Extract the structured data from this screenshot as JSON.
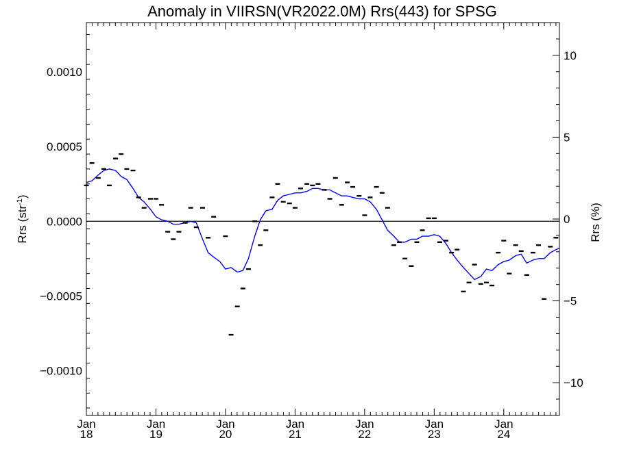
{
  "chart_data": {
    "type": "scatter",
    "title": "Anomaly in VIIRSN(VR2022.0M) Rrs(443) for SPSG",
    "ylabel": "Rrs (str",
    "ylabel_sup": "-1",
    "ylabel_close": ")",
    "y2label": "Rrs (%)",
    "xlim": [
      2018.0,
      2024.8
    ],
    "ylim": [
      -0.0013,
      0.00133
    ],
    "y2lim": [
      -12,
      12
    ],
    "x_ticks": [
      {
        "x": 2018.0,
        "month": "Jan",
        "year": "18"
      },
      {
        "x": 2019.0,
        "month": "Jan",
        "year": "19"
      },
      {
        "x": 2020.0,
        "month": "Jan",
        "year": "20"
      },
      {
        "x": 2021.0,
        "month": "Jan",
        "year": "21"
      },
      {
        "x": 2022.0,
        "month": "Jan",
        "year": "22"
      },
      {
        "x": 2023.0,
        "month": "Jan",
        "year": "23"
      },
      {
        "x": 2024.0,
        "month": "Jan",
        "year": "24"
      }
    ],
    "y_ticks": [
      {
        "value": 0.001,
        "label": "0.0010"
      },
      {
        "value": 0.0005,
        "label": "0.0005"
      },
      {
        "value": 0.0,
        "label": "0.0000"
      },
      {
        "value": -0.0005,
        "label": "−0.0005"
      },
      {
        "value": -0.001,
        "label": "−0.0010"
      }
    ],
    "y2_ticks": [
      {
        "value": 10,
        "label": "10"
      },
      {
        "value": 5,
        "label": "5"
      },
      {
        "value": 0,
        "label": "0"
      },
      {
        "value": -5,
        "label": "−5"
      },
      {
        "value": -10,
        "label": "−10"
      }
    ],
    "zero_line": true,
    "colors": {
      "points": "#000000",
      "smoothed": "#0000ff",
      "zero_line": "#000000"
    },
    "series": [
      {
        "kind": "points",
        "x": [
          2018.0,
          2018.08,
          2018.17,
          2018.25,
          2018.33,
          2018.42,
          2018.5,
          2018.58,
          2018.67,
          2018.75,
          2018.83,
          2018.92,
          2019.0,
          2019.08,
          2019.17,
          2019.25,
          2019.33,
          2019.42,
          2019.5,
          2019.58,
          2019.67,
          2019.75,
          2019.83,
          2019.92,
          2020.0,
          2020.08,
          2020.17,
          2020.25,
          2020.33,
          2020.42,
          2020.5,
          2020.58,
          2020.67,
          2020.75,
          2020.83,
          2020.92,
          2021.0,
          2021.08,
          2021.17,
          2021.25,
          2021.33,
          2021.42,
          2021.5,
          2021.58,
          2021.67,
          2021.75,
          2021.83,
          2021.92,
          2022.0,
          2022.08,
          2022.17,
          2022.25,
          2022.33,
          2022.42,
          2022.5,
          2022.58,
          2022.67,
          2022.75,
          2022.83,
          2022.92,
          2023.0,
          2023.08,
          2023.17,
          2023.25,
          2023.33,
          2023.42,
          2023.5,
          2023.58,
          2023.67,
          2023.75,
          2023.83,
          2023.92,
          2024.0,
          2024.08,
          2024.17,
          2024.25,
          2024.33,
          2024.42,
          2024.5,
          2024.58,
          2024.67,
          2024.75
        ],
        "y": [
          0.00024,
          0.00039,
          0.00029,
          0.00035,
          0.00024,
          0.00042,
          0.00045,
          0.00035,
          0.00034,
          0.00016,
          9e-05,
          0.00015,
          0.00015,
          0.00011,
          -7e-05,
          -0.00012,
          -7e-05,
          -1e-05,
          9e-05,
          -4e-05,
          9e-05,
          -0.00011,
          3e-05,
          null,
          -0.0001,
          -0.00076,
          -0.00057,
          -0.00045,
          -0.00032,
          0.0,
          -0.00016,
          -6e-05,
          0.00016,
          0.00025,
          0.00013,
          0.00012,
          9e-05,
          0.00022,
          0.00025,
          0.00024,
          0.00025,
          0.00021,
          0.00015,
          0.00029,
          0.00011,
          0.00026,
          0.00023,
          0.00017,
          4e-05,
          0.00016,
          0.00023,
          0.00019,
          9e-05,
          -0.00016,
          -0.00014,
          -0.00025,
          -0.0003,
          -0.00014,
          -6e-05,
          2e-05,
          2e-05,
          -0.00014,
          -0.00013,
          -0.00021,
          -0.00019,
          -0.00047,
          -0.00041,
          -0.00029,
          -0.00042,
          -0.00041,
          -0.00043,
          -0.00021,
          -0.00013,
          -0.00035,
          -0.00016,
          -0.0002,
          -0.00036,
          -0.00021,
          -0.00016,
          -0.00052,
          -0.00017,
          -0.00011
        ]
      },
      {
        "kind": "smoothed",
        "x": [
          2018.0,
          2018.08,
          2018.17,
          2018.25,
          2018.33,
          2018.42,
          2018.5,
          2018.58,
          2018.67,
          2018.75,
          2018.83,
          2018.92,
          2019.0,
          2019.08,
          2019.17,
          2019.25,
          2019.33,
          2019.42,
          2019.5,
          2019.58,
          2019.67,
          2019.75,
          2019.83,
          2019.92,
          2020.0,
          2020.08,
          2020.17,
          2020.25,
          2020.33,
          2020.42,
          2020.5,
          2020.58,
          2020.67,
          2020.75,
          2020.83,
          2020.92,
          2021.0,
          2021.08,
          2021.17,
          2021.25,
          2021.33,
          2021.42,
          2021.5,
          2021.58,
          2021.67,
          2021.75,
          2021.83,
          2021.92,
          2022.0,
          2022.08,
          2022.17,
          2022.25,
          2022.33,
          2022.42,
          2022.5,
          2022.58,
          2022.67,
          2022.75,
          2022.83,
          2022.92,
          2023.0,
          2023.08,
          2023.17,
          2023.25,
          2023.33,
          2023.42,
          2023.5,
          2023.58,
          2023.67,
          2023.75,
          2023.83,
          2023.92,
          2024.0,
          2024.08,
          2024.17,
          2024.25,
          2024.33,
          2024.42,
          2024.5,
          2024.58,
          2024.67,
          2024.75,
          2024.8
        ],
        "y": [
          0.00026,
          0.00027,
          0.00031,
          0.00034,
          0.00035,
          0.00034,
          0.0003,
          0.00028,
          0.00022,
          0.00016,
          0.00013,
          8e-05,
          3e-05,
          1e-05,
          0.0,
          -2e-05,
          -2e-05,
          -1e-05,
          0.0,
          -1e-05,
          -0.00012,
          -0.00021,
          -0.00024,
          -0.00027,
          -0.00032,
          -0.00031,
          -0.00034,
          -0.00033,
          -0.00025,
          -0.0001,
          1e-05,
          7e-05,
          8e-05,
          0.00014,
          0.00017,
          0.00018,
          0.00019,
          0.00019,
          0.0002,
          0.00022,
          0.00022,
          0.00021,
          0.00021,
          0.00019,
          0.00017,
          0.00017,
          0.00016,
          0.00015,
          0.00015,
          0.00013,
          8e-05,
          1e-05,
          -6e-05,
          -0.0001,
          -0.00014,
          -0.00014,
          -0.00012,
          -0.00012,
          -0.0001,
          -0.0001,
          -9e-05,
          -0.0001,
          -0.00015,
          -0.00021,
          -0.00026,
          -0.00031,
          -0.00035,
          -0.00039,
          -0.00037,
          -0.00032,
          -0.00033,
          -0.00029,
          -0.00027,
          -0.00026,
          -0.00023,
          -0.00022,
          -0.00028,
          -0.00026,
          -0.00025,
          -0.00025,
          -0.00021,
          -0.00019,
          -0.00018
        ]
      }
    ]
  }
}
